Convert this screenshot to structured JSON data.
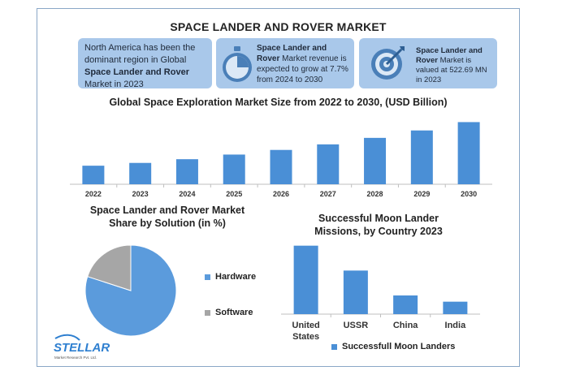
{
  "title": "SPACE LANDER AND ROVER MARKET",
  "cards": [
    {
      "pre": "North America has been the dominant region in Global ",
      "bold": "Space Lander and Rover",
      "post": " Market in 2023"
    },
    {
      "pre": "",
      "bold": "Space Lander and Rover",
      "post": " Market revenue is expected to grow at 7.7% from 2024 to 2030",
      "icon": "stopwatch-icon"
    },
    {
      "pre": "",
      "bold": "Space Lander and Rover",
      "post": " Market is valued at 522.69 MN in 2023",
      "icon": "target-icon"
    }
  ],
  "colors": {
    "bar": "#4a8fd6",
    "hardware": "#5b9bdc",
    "software": "#a6a6a6",
    "card": "#a9c8ea"
  },
  "logo": {
    "name": "STELLAR",
    "tagline": "Market Research Pvt. Ltd."
  },
  "chart_data": [
    {
      "type": "bar",
      "title": "Global Space Exploration Market Size from 2022 to 2030, (USD Billion)",
      "categories": [
        "2022",
        "2023",
        "2024",
        "2025",
        "2026",
        "2027",
        "2028",
        "2029",
        "2030"
      ],
      "values": [
        20,
        23,
        27,
        32,
        37,
        43,
        50,
        58,
        67
      ],
      "ylim": [
        0,
        70
      ],
      "grid": false
    },
    {
      "type": "pie",
      "title": "Space Lander and Rover Market Share by Solution (in %)",
      "labels": [
        "Hardware",
        "Software"
      ],
      "values": [
        80,
        20
      ],
      "legend": "right"
    },
    {
      "type": "bar",
      "title": "Successful Moon Lander Missions, by Country 2023",
      "categories": [
        "United States",
        "USSR",
        "China",
        "India"
      ],
      "series": [
        {
          "name": "Successfull Moon Landers",
          "values": [
            11,
            7,
            3,
            2
          ]
        }
      ],
      "ylim": [
        0,
        12
      ],
      "legend": "bottom"
    }
  ]
}
